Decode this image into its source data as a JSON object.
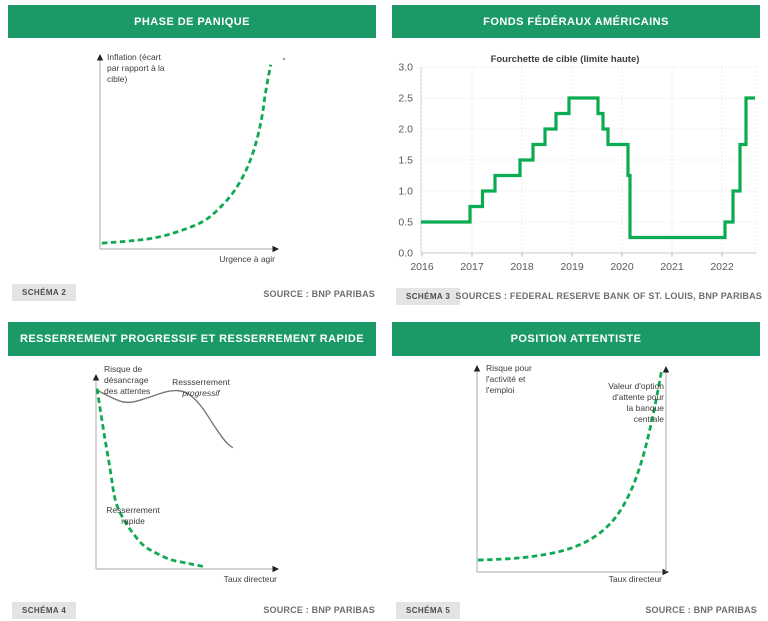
{
  "colors": {
    "header_bg": "#1b9a68",
    "header_text": "#ffffff",
    "fed_line_green": "#0bab51",
    "dash_green": "#0fa953",
    "gray_curve": "#787878",
    "axis_gray": "#a8a8a8",
    "arrow_dark": "#222222",
    "grid": "#e7e7e7",
    "tick_text": "#5a5a5a",
    "badge_bg": "#e4e4e4",
    "source_text": "#6e6e6e"
  },
  "panels": [
    {
      "title": "PHASE DE PANIQUE",
      "schema": "SCHÉMA 2",
      "source": "SOURCE : BNP PARIBAS",
      "y_label": "Inflation (écart\npar rapport à la\ncible)",
      "x_label": "Urgence à agir"
    },
    {
      "title": "FONDS FÉDÉRAUX AMÉRICAINS",
      "schema": "SCHÉMA 3",
      "source": "SOURCES : FEDERAL RESERVE BANK OF ST. LOUIS, BNP PARIBAS",
      "chart_title": "Fourchette de cible (limite haute)"
    },
    {
      "title": "RESSERREMENT PROGRESSIF ET RESSERREMENT RAPIDE",
      "schema": "SCHÉMA 4",
      "source": "SOURCE : BNP PARIBAS",
      "y_label": "Risque de\ndésancrage\ndes attentes",
      "x_label": "Taux directeur",
      "annotation_progressif_l1": "Ressserrement",
      "annotation_progressif_l2": "progressif",
      "annotation_rapide": "Resserrement\nrapide"
    },
    {
      "title": "POSITION ATTENTISTE",
      "schema": "SCHÉMA 5",
      "source": "SOURCE : BNP PARIBAS",
      "y_label": "Risque pour\nl'activité et\nl'emploi",
      "x_label": "Taux directeur",
      "annotation_option": "Valeur d'option\nd'attente pour\nla banque\ncentrale"
    }
  ],
  "chart_data": [
    {
      "type": "line",
      "panel": "PHASE DE PANIQUE",
      "style": "schematic",
      "xlabel": "Urgence à agir",
      "ylabel": "Inflation (écart par rapport à la cible)",
      "series": [
        {
          "name": "inflation-ecart",
          "dashed": true,
          "points_norm": [
            [
              0.01,
              0.03
            ],
            [
              0.17,
              0.04
            ],
            [
              0.34,
              0.06
            ],
            [
              0.48,
              0.1
            ],
            [
              0.59,
              0.14
            ],
            [
              0.67,
              0.2
            ],
            [
              0.76,
              0.29
            ],
            [
              0.83,
              0.4
            ],
            [
              0.88,
              0.52
            ],
            [
              0.92,
              0.67
            ],
            [
              0.94,
              0.81
            ],
            [
              0.97,
              0.95
            ]
          ]
        }
      ]
    },
    {
      "type": "line",
      "subtype": "step",
      "panel": "FONDS FÉDÉRAUX AMÉRICAINS",
      "title": "Fourchette de cible (limite haute)",
      "x_ticks": [
        2016,
        2017,
        2018,
        2019,
        2020,
        2021,
        2022
      ],
      "y_ticks": [
        "0.0",
        "0.5",
        "1.0",
        "1.5",
        "2.0",
        "2.5",
        "3.0"
      ],
      "ylim": [
        0,
        3
      ],
      "xlim": [
        2015.98,
        2022.66
      ],
      "grid": true,
      "series": [
        {
          "name": "Fourchette de cible (limite haute)",
          "steps": [
            [
              2015.98,
              0.5
            ],
            [
              2016.96,
              0.75
            ],
            [
              2017.21,
              1.0
            ],
            [
              2017.46,
              1.25
            ],
            [
              2017.96,
              1.5
            ],
            [
              2018.22,
              1.75
            ],
            [
              2018.46,
              2.0
            ],
            [
              2018.68,
              2.25
            ],
            [
              2018.94,
              2.5
            ],
            [
              2019.52,
              2.25
            ],
            [
              2019.62,
              2.0
            ],
            [
              2019.72,
              1.75
            ],
            [
              2020.12,
              1.25
            ],
            [
              2020.16,
              0.25
            ],
            [
              2022.06,
              0.5
            ],
            [
              2022.22,
              1.0
            ],
            [
              2022.36,
              1.75
            ],
            [
              2022.48,
              2.5
            ],
            [
              2022.66,
              2.5
            ]
          ]
        }
      ]
    },
    {
      "type": "line",
      "panel": "RESSERREMENT PROGRESSIF ET RESSERREMENT RAPIDE",
      "style": "schematic",
      "xlabel": "Taux directeur",
      "ylabel": "Risque de désancrage des attentes",
      "series": [
        {
          "name": "Resserrement progressif",
          "dashed": false,
          "points_norm": [
            [
              0.006,
              0.922
            ],
            [
              0.1,
              0.875
            ],
            [
              0.18,
              0.852
            ],
            [
              0.3,
              0.886
            ],
            [
              0.41,
              0.922
            ],
            [
              0.5,
              0.917
            ],
            [
              0.58,
              0.85
            ],
            [
              0.65,
              0.746
            ],
            [
              0.72,
              0.653
            ],
            [
              0.76,
              0.625
            ]
          ]
        },
        {
          "name": "Resserrement rapide",
          "dashed": true,
          "points_norm": [
            [
              0.006,
              0.93
            ],
            [
              0.04,
              0.72
            ],
            [
              0.08,
              0.51
            ],
            [
              0.106,
              0.34
            ],
            [
              0.156,
              0.25
            ],
            [
              0.2,
              0.19
            ],
            [
              0.26,
              0.12
            ],
            [
              0.33,
              0.083
            ],
            [
              0.41,
              0.047
            ],
            [
              0.5,
              0.031
            ],
            [
              0.58,
              0.016
            ],
            [
              0.61,
              0.01
            ]
          ]
        }
      ]
    },
    {
      "type": "line",
      "panel": "POSITION ATTENTISTE",
      "style": "schematic",
      "xlabel": "Taux directeur",
      "ylabel": "Risque pour l'activité et l'emploi",
      "series": [
        {
          "name": "Valeur d'option d'attente pour la banque centrale",
          "dashed": true,
          "points_norm": [
            [
              0.005,
              0.058
            ],
            [
              0.15,
              0.062
            ],
            [
              0.3,
              0.075
            ],
            [
              0.45,
              0.1
            ],
            [
              0.57,
              0.14
            ],
            [
              0.67,
              0.2
            ],
            [
              0.75,
              0.28
            ],
            [
              0.82,
              0.4
            ],
            [
              0.87,
              0.53
            ],
            [
              0.91,
              0.67
            ],
            [
              0.945,
              0.82
            ],
            [
              0.975,
              0.97
            ]
          ]
        }
      ]
    }
  ]
}
